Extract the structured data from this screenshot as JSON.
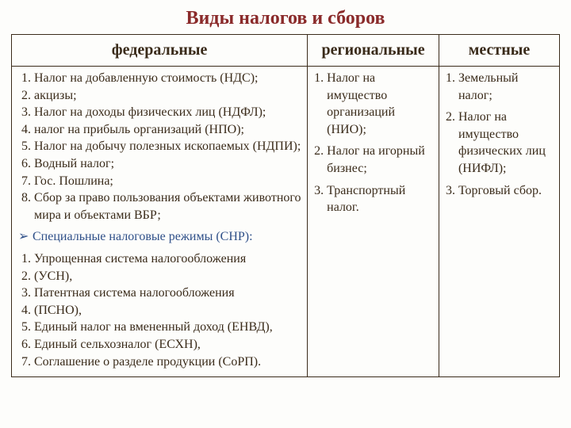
{
  "title": "Виды налогов и сборов",
  "headers": {
    "federal": "федеральные",
    "regional": "региональные",
    "local": "местные"
  },
  "federal_list": [
    "Налог на добавленную стоимость (НДС);",
    "акцизы;",
    "Налог на доходы физических лиц (НДФЛ);",
    "налог на прибыль организаций (НПО);",
    "Налог на добычу полезных ископаемых (НДПИ);",
    "Водный налог;",
    "Гос. Пошлина;",
    " Сбор за право пользования  объектами животного мира и объектами ВБР;"
  ],
  "snr_label": "Специальные налоговые режимы (СНР):",
  "snr_list": [
    "Упрощенная система налогообложения",
    "   (УСН),",
    "Патентная система налогообложения",
    "   (ПСНО),",
    "Единый налог на вмененный доход (ЕНВД),",
    "Единый сельхозналог (ЕСХН),",
    "Соглашение о разделе продукции (СоРП)."
  ],
  "regional_items": [
    {
      "n": "1.",
      "t": "Налог на имущество организаций (НИО);"
    },
    {
      "n": "2.",
      "t": "Налог на игорный бизнес;"
    },
    {
      "n": "3.",
      "t": "Транспортный налог."
    }
  ],
  "local_items": [
    {
      "n": "1.",
      "t": "Земельный налог;"
    },
    {
      "n": "2.",
      "t": "Налог на имущество физических лиц (НИФЛ);"
    },
    {
      "n": "3.",
      "t": "Торговый сбор."
    }
  ]
}
